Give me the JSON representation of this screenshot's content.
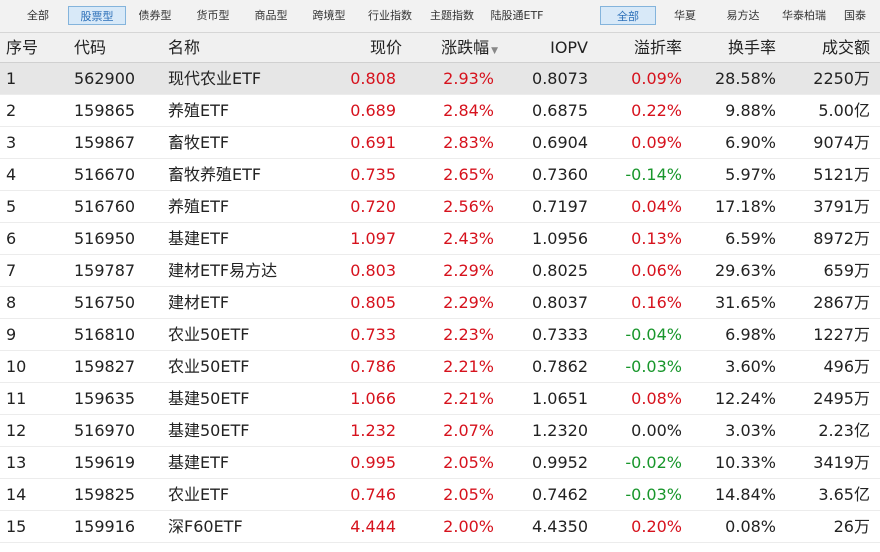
{
  "toolbar": {
    "left_tabs": [
      "全部",
      "股票型",
      "债券型",
      "货币型",
      "商品型",
      "跨境型",
      "行业指数",
      "主题指数",
      "陆股通ETF"
    ],
    "left_active": 1,
    "right_tabs": [
      "全部",
      "华夏",
      "易方达",
      "华泰柏瑞",
      "国泰"
    ],
    "right_active": 0
  },
  "columns": {
    "index": "序号",
    "code": "代码",
    "name": "名称",
    "price": "现价",
    "change": "涨跌幅",
    "iopv": "IOPV",
    "premium": "溢折率",
    "turnover": "换手率",
    "amount": "成交额"
  },
  "sort_icon": "sort-down-icon",
  "colors": {
    "up": "#d6121d",
    "down": "#18962b",
    "flat": "#222222"
  },
  "rows": [
    {
      "index": "1",
      "code": "562900",
      "name": "现代农业ETF",
      "price": "0.808",
      "change": "2.93%",
      "iopv": "0.8073",
      "premium": "0.09%",
      "turnover": "28.58%",
      "amount": "2250万"
    },
    {
      "index": "2",
      "code": "159865",
      "name": "养殖ETF",
      "price": "0.689",
      "change": "2.84%",
      "iopv": "0.6875",
      "premium": "0.22%",
      "turnover": "9.88%",
      "amount": "5.00亿"
    },
    {
      "index": "3",
      "code": "159867",
      "name": "畜牧ETF",
      "price": "0.691",
      "change": "2.83%",
      "iopv": "0.6904",
      "premium": "0.09%",
      "turnover": "6.90%",
      "amount": "9074万"
    },
    {
      "index": "4",
      "code": "516670",
      "name": "畜牧养殖ETF",
      "price": "0.735",
      "change": "2.65%",
      "iopv": "0.7360",
      "premium": "-0.14%",
      "turnover": "5.97%",
      "amount": "5121万"
    },
    {
      "index": "5",
      "code": "516760",
      "name": "养殖ETF",
      "price": "0.720",
      "change": "2.56%",
      "iopv": "0.7197",
      "premium": "0.04%",
      "turnover": "17.18%",
      "amount": "3791万"
    },
    {
      "index": "6",
      "code": "516950",
      "name": "基建ETF",
      "price": "1.097",
      "change": "2.43%",
      "iopv": "1.0956",
      "premium": "0.13%",
      "turnover": "6.59%",
      "amount": "8972万"
    },
    {
      "index": "7",
      "code": "159787",
      "name": "建材ETF易方达",
      "price": "0.803",
      "change": "2.29%",
      "iopv": "0.8025",
      "premium": "0.06%",
      "turnover": "29.63%",
      "amount": "659万"
    },
    {
      "index": "8",
      "code": "516750",
      "name": "建材ETF",
      "price": "0.805",
      "change": "2.29%",
      "iopv": "0.8037",
      "premium": "0.16%",
      "turnover": "31.65%",
      "amount": "2867万"
    },
    {
      "index": "9",
      "code": "516810",
      "name": "农业50ETF",
      "price": "0.733",
      "change": "2.23%",
      "iopv": "0.7333",
      "premium": "-0.04%",
      "turnover": "6.98%",
      "amount": "1227万"
    },
    {
      "index": "10",
      "code": "159827",
      "name": "农业50ETF",
      "price": "0.786",
      "change": "2.21%",
      "iopv": "0.7862",
      "premium": "-0.03%",
      "turnover": "3.60%",
      "amount": "496万"
    },
    {
      "index": "11",
      "code": "159635",
      "name": "基建50ETF",
      "price": "1.066",
      "change": "2.21%",
      "iopv": "1.0651",
      "premium": "0.08%",
      "turnover": "12.24%",
      "amount": "2495万"
    },
    {
      "index": "12",
      "code": "516970",
      "name": "基建50ETF",
      "price": "1.232",
      "change": "2.07%",
      "iopv": "1.2320",
      "premium": "0.00%",
      "turnover": "3.03%",
      "amount": "2.23亿"
    },
    {
      "index": "13",
      "code": "159619",
      "name": "基建ETF",
      "price": "0.995",
      "change": "2.05%",
      "iopv": "0.9952",
      "premium": "-0.02%",
      "turnover": "10.33%",
      "amount": "3419万"
    },
    {
      "index": "14",
      "code": "159825",
      "name": "农业ETF",
      "price": "0.746",
      "change": "2.05%",
      "iopv": "0.7462",
      "premium": "-0.03%",
      "turnover": "14.84%",
      "amount": "3.65亿"
    },
    {
      "index": "15",
      "code": "159916",
      "name": "深F60ETF",
      "price": "4.444",
      "change": "2.00%",
      "iopv": "4.4350",
      "premium": "0.20%",
      "turnover": "0.08%",
      "amount": "26万"
    }
  ]
}
